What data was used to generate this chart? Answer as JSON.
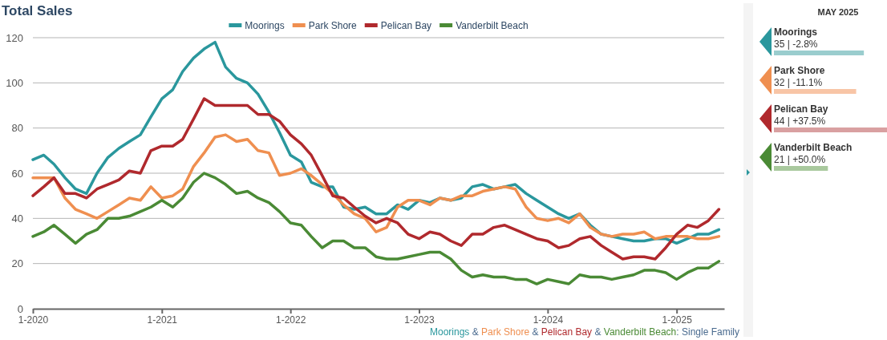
{
  "chart_data": [
    {
      "type": "line",
      "title": "Total Sales",
      "legend": "top",
      "grid": "y",
      "marker": "none",
      "line_style": "solid",
      "x": [
        "2020-01",
        "2020-02",
        "2020-03",
        "2020-04",
        "2020-05",
        "2020-06",
        "2020-07",
        "2020-08",
        "2020-09",
        "2020-10",
        "2020-11",
        "2020-12",
        "2021-01",
        "2021-02",
        "2021-03",
        "2021-04",
        "2021-05",
        "2021-06",
        "2021-07",
        "2021-08",
        "2021-09",
        "2021-10",
        "2021-11",
        "2021-12",
        "2022-01",
        "2022-02",
        "2022-03",
        "2022-04",
        "2022-05",
        "2022-06",
        "2022-07",
        "2022-08",
        "2022-09",
        "2022-10",
        "2022-11",
        "2022-12",
        "2023-01",
        "2023-02",
        "2023-03",
        "2023-04",
        "2023-05",
        "2023-06",
        "2023-07",
        "2023-08",
        "2023-09",
        "2023-10",
        "2023-11",
        "2023-12",
        "2024-01",
        "2024-02",
        "2024-03",
        "2024-04",
        "2024-05",
        "2024-06",
        "2024-07",
        "2024-08",
        "2024-09",
        "2024-10",
        "2024-11",
        "2024-12",
        "2025-01",
        "2025-02",
        "2025-03",
        "2025-04",
        "2025-05"
      ],
      "xlim": [
        "2020-01",
        "2025-05-16"
      ],
      "xticks": [
        {
          "value": "2020-01",
          "label": "1-2020"
        },
        {
          "value": "2021-01",
          "label": "1-2021"
        },
        {
          "value": "2022-01",
          "label": "1-2022"
        },
        {
          "value": "2023-01",
          "label": "1-2023"
        },
        {
          "value": "2024-01",
          "label": "1-2024"
        },
        {
          "value": "2025-01",
          "label": "1-2025"
        }
      ],
      "ylim": [
        0,
        120
      ],
      "yticks": [
        0,
        20,
        40,
        60,
        80,
        100,
        120
      ],
      "series": [
        {
          "name": "Moorings",
          "color": "#2a979d",
          "values": [
            66,
            68,
            64,
            58,
            53,
            51,
            60,
            67,
            71,
            74,
            77,
            85,
            93,
            97,
            105,
            111,
            115,
            118,
            107,
            102,
            100,
            95,
            87,
            78,
            68,
            65,
            56,
            54,
            54,
            45,
            44,
            45,
            42,
            42,
            46,
            44,
            48,
            47,
            49,
            48,
            49,
            54,
            55,
            53,
            54,
            55,
            51,
            48,
            45,
            42,
            40,
            42,
            37,
            33,
            32,
            31,
            30,
            30,
            31,
            31,
            29,
            31,
            33,
            33,
            35
          ]
        },
        {
          "name": "Park Shore",
          "color": "#ef8f50",
          "values": [
            58,
            58,
            58,
            49,
            44,
            42,
            40,
            43,
            46,
            49,
            48,
            54,
            49,
            50,
            53,
            63,
            69,
            76,
            77,
            74,
            75,
            70,
            69,
            59,
            60,
            62,
            59,
            55,
            51,
            46,
            42,
            40,
            34,
            36,
            45,
            48,
            48,
            46,
            49,
            48,
            50,
            50,
            52,
            53,
            54,
            53,
            45,
            40,
            39,
            40,
            38,
            42,
            36,
            33,
            32,
            33,
            33,
            34,
            31,
            32,
            32,
            32,
            31,
            31,
            32
          ]
        },
        {
          "name": "Pelican Bay",
          "color": "#b0292d",
          "values": [
            50,
            54,
            58,
            51,
            51,
            49,
            53,
            55,
            57,
            61,
            60,
            70,
            72,
            72,
            75,
            84,
            93,
            90,
            90,
            90,
            90,
            86,
            86,
            83,
            77,
            73,
            68,
            59,
            50,
            49,
            45,
            41,
            38,
            40,
            38,
            33,
            31,
            34,
            33,
            30,
            28,
            33,
            33,
            36,
            37,
            35,
            33,
            31,
            30,
            27,
            28,
            31,
            32,
            28,
            25,
            22,
            23,
            23,
            22,
            27,
            33,
            37,
            36,
            39,
            44
          ]
        },
        {
          "name": "Vanderbilt Beach",
          "color": "#4a8a35",
          "values": [
            32,
            34,
            37,
            33,
            29,
            33,
            35,
            40,
            40,
            41,
            43,
            45,
            48,
            45,
            49,
            56,
            60,
            58,
            55,
            51,
            52,
            49,
            47,
            43,
            38,
            37,
            32,
            27,
            30,
            30,
            27,
            27,
            23,
            22,
            22,
            23,
            24,
            25,
            25,
            22,
            17,
            14,
            15,
            14,
            14,
            13,
            13,
            11,
            13,
            12,
            11,
            15,
            14,
            14,
            13,
            14,
            15,
            17,
            17,
            16,
            13,
            16,
            18,
            18,
            21
          ]
        }
      ],
      "annotations": [
        "Moorings & Park Shore & Pelican Bay & Vanderbilt Beach: Single Family"
      ]
    },
    {
      "type": "bar",
      "orientation": "horizontal",
      "title": "MAY 2025",
      "categories": [
        "Moorings",
        "Park Shore",
        "Pelican Bay",
        "Vanderbilt Beach"
      ],
      "values": [
        35,
        32,
        44,
        21
      ],
      "colors": [
        "#9acdce",
        "#f8c5a6",
        "#d9a0a1",
        "#a9c99e"
      ],
      "value_labels": [
        "35 | -2.8%",
        "32 | -11.1%",
        "44 | +37.5%",
        "21 | +50.0%"
      ]
    }
  ]
}
